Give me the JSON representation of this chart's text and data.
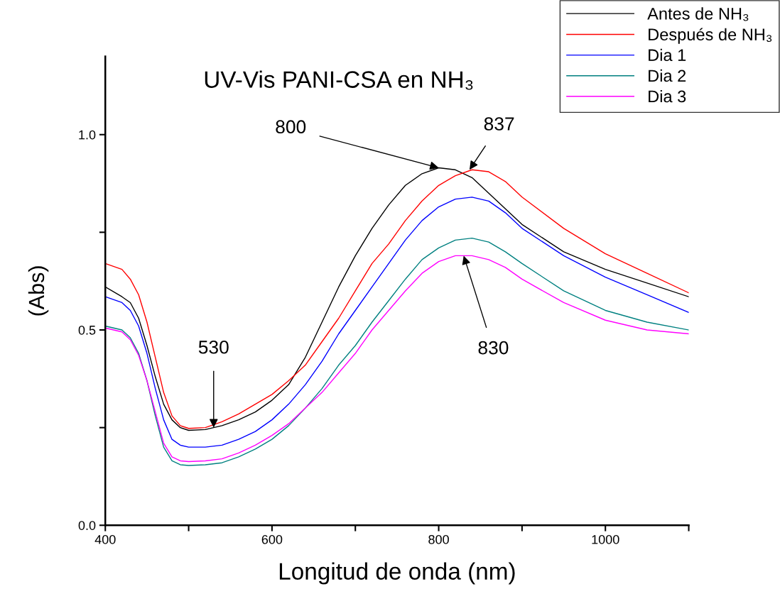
{
  "chart_data": {
    "type": "line",
    "title": "UV-Vis PANI-CSA en NH₃",
    "xlabel": "Longitud de onda (nm)",
    "ylabel": "(Abs)",
    "x": [
      400,
      420,
      430,
      440,
      450,
      460,
      470,
      480,
      490,
      500,
      520,
      540,
      560,
      580,
      600,
      620,
      640,
      660,
      680,
      700,
      720,
      740,
      760,
      780,
      800,
      820,
      840,
      860,
      880,
      900,
      950,
      1000,
      1050,
      1100
    ],
    "series": [
      {
        "name": "Antes de NH₃",
        "color": "#000000",
        "values": [
          0.61,
          0.585,
          0.57,
          0.53,
          0.46,
          0.38,
          0.31,
          0.27,
          0.25,
          0.243,
          0.245,
          0.255,
          0.27,
          0.29,
          0.32,
          0.36,
          0.43,
          0.52,
          0.61,
          0.69,
          0.76,
          0.82,
          0.87,
          0.9,
          0.915,
          0.91,
          0.89,
          0.85,
          0.81,
          0.77,
          0.7,
          0.655,
          0.62,
          0.585
        ]
      },
      {
        "name": "Después de NH₃",
        "color": "#ff0000",
        "values": [
          0.67,
          0.655,
          0.63,
          0.59,
          0.52,
          0.43,
          0.34,
          0.28,
          0.255,
          0.248,
          0.25,
          0.265,
          0.285,
          0.31,
          0.335,
          0.37,
          0.41,
          0.47,
          0.53,
          0.6,
          0.67,
          0.72,
          0.78,
          0.83,
          0.87,
          0.895,
          0.91,
          0.905,
          0.88,
          0.84,
          0.76,
          0.695,
          0.645,
          0.595
        ]
      },
      {
        "name": "Dia 1",
        "color": "#0000ff",
        "values": [
          0.585,
          0.57,
          0.55,
          0.51,
          0.44,
          0.35,
          0.27,
          0.22,
          0.205,
          0.2,
          0.2,
          0.205,
          0.22,
          0.24,
          0.27,
          0.31,
          0.36,
          0.42,
          0.49,
          0.55,
          0.61,
          0.67,
          0.73,
          0.78,
          0.815,
          0.835,
          0.84,
          0.83,
          0.8,
          0.76,
          0.69,
          0.635,
          0.59,
          0.545
        ]
      },
      {
        "name": "Dia 2",
        "color": "#008080",
        "values": [
          0.51,
          0.5,
          0.48,
          0.44,
          0.37,
          0.28,
          0.2,
          0.165,
          0.155,
          0.153,
          0.155,
          0.16,
          0.175,
          0.195,
          0.22,
          0.255,
          0.3,
          0.35,
          0.41,
          0.46,
          0.52,
          0.575,
          0.63,
          0.68,
          0.71,
          0.73,
          0.735,
          0.725,
          0.7,
          0.67,
          0.6,
          0.55,
          0.52,
          0.5
        ]
      },
      {
        "name": "Dia 3",
        "color": "#ff00ff",
        "values": [
          0.505,
          0.495,
          0.475,
          0.435,
          0.37,
          0.29,
          0.21,
          0.175,
          0.165,
          0.163,
          0.165,
          0.17,
          0.185,
          0.205,
          0.23,
          0.26,
          0.3,
          0.34,
          0.39,
          0.44,
          0.5,
          0.55,
          0.6,
          0.645,
          0.675,
          0.69,
          0.69,
          0.68,
          0.66,
          0.63,
          0.57,
          0.525,
          0.5,
          0.49
        ]
      }
    ],
    "xlim": [
      400,
      1100
    ],
    "xticks": [
      400,
      {
        "value": 500,
        "label": null
      },
      600,
      {
        "value": 700,
        "label": null
      },
      800,
      {
        "value": 900,
        "label": null
      },
      1000,
      {
        "value": 1100,
        "label": null
      }
    ],
    "ylim": [
      0,
      1.2
    ],
    "yticks": [
      {
        "value": 0,
        "label": "0.0"
      },
      {
        "value": 0.25,
        "label": null
      },
      0.5,
      {
        "value": 0.75,
        "label": null
      },
      {
        "value": 1,
        "label": "1.0"
      }
    ],
    "annotations": [
      {
        "text": "800",
        "x": 800,
        "y": 0.915
      },
      {
        "text": "837",
        "x": 837,
        "y": 0.91
      },
      {
        "text": "530",
        "x": 530,
        "y": 0.25
      },
      {
        "text": "830",
        "x": 830,
        "y": 0.69
      }
    ],
    "grid": false,
    "legend": "top right",
    "line_style": "solid",
    "marker": "none"
  }
}
